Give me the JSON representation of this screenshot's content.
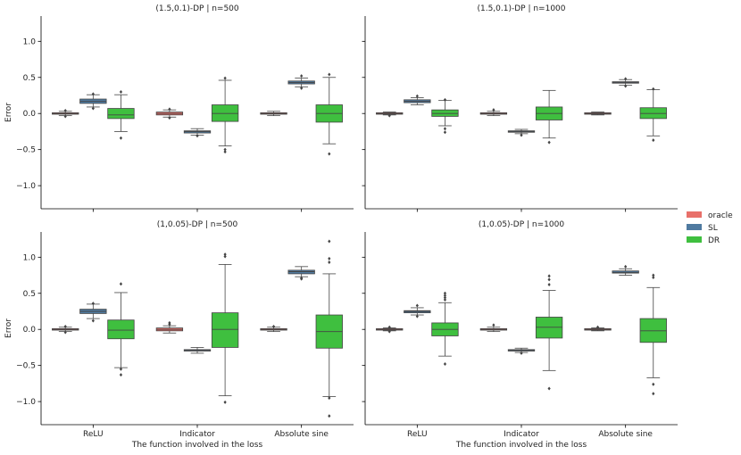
{
  "chart_data": {
    "type": "box",
    "categories": [
      "ReLU",
      "Indicator",
      "Absolute sine"
    ],
    "ylabel": "Error",
    "xlabel": "The function involved in the loss",
    "ylim": [
      -1.32,
      1.35
    ],
    "yticks": [
      -1.0,
      -0.5,
      0.0,
      0.5,
      1.0
    ],
    "ytick_labels": [
      "−1.0",
      "−0.5",
      "0.0",
      "0.5",
      "1.0"
    ],
    "colors": {
      "oracle": "#e8706a",
      "SL": "#4f7aa0",
      "DR": "#3fbf3f"
    },
    "legend": [
      {
        "key": "oracle",
        "label": "oracle"
      },
      {
        "key": "SL",
        "label": "SL"
      },
      {
        "key": "DR",
        "label": "DR"
      }
    ],
    "panels": [
      {
        "title": "(1.5,0.1)-DP | n=500",
        "boxes": [
          [
            {
              "series": "oracle",
              "q1": -0.01,
              "med": 0.0,
              "q3": 0.01,
              "wlo": -0.03,
              "whi": 0.03,
              "out": [
                -0.04,
                0.04
              ]
            },
            {
              "series": "SL",
              "q1": 0.14,
              "med": 0.17,
              "q3": 0.2,
              "wlo": 0.09,
              "whi": 0.26,
              "out": [
                0.07,
                0.27
              ]
            },
            {
              "series": "DR",
              "q1": -0.07,
              "med": -0.02,
              "q3": 0.07,
              "wlo": -0.25,
              "whi": 0.26,
              "out": [
                -0.34,
                0.3
              ]
            }
          ],
          [
            {
              "series": "oracle",
              "q1": -0.02,
              "med": 0.0,
              "q3": 0.02,
              "wlo": -0.05,
              "whi": 0.05,
              "out": [
                -0.06,
                0.06
              ]
            },
            {
              "series": "SL",
              "q1": -0.27,
              "med": -0.25,
              "q3": -0.24,
              "wlo": -0.3,
              "whi": -0.21,
              "out": [
                -0.31
              ]
            },
            {
              "series": "DR",
              "q1": -0.11,
              "med": 0.0,
              "q3": 0.12,
              "wlo": -0.45,
              "whi": 0.46,
              "out": [
                -0.5,
                -0.53,
                0.49
              ]
            }
          ],
          [
            {
              "series": "oracle",
              "q1": -0.01,
              "med": 0.0,
              "q3": 0.01,
              "wlo": -0.03,
              "whi": 0.03,
              "out": []
            },
            {
              "series": "SL",
              "q1": 0.41,
              "med": 0.43,
              "q3": 0.45,
              "wlo": 0.37,
              "whi": 0.49,
              "out": [
                0.35,
                0.52
              ]
            },
            {
              "series": "DR",
              "q1": -0.12,
              "med": 0.0,
              "q3": 0.12,
              "wlo": -0.42,
              "whi": 0.5,
              "out": [
                -0.56,
                0.54
              ]
            }
          ]
        ]
      },
      {
        "title": "(1.5,0.1)-DP | n=1000",
        "boxes": [
          [
            {
              "series": "oracle",
              "q1": -0.01,
              "med": 0.0,
              "q3": 0.01,
              "wlo": -0.02,
              "whi": 0.02,
              "out": [
                -0.03
              ]
            },
            {
              "series": "SL",
              "q1": 0.15,
              "med": 0.17,
              "q3": 0.19,
              "wlo": 0.12,
              "whi": 0.22,
              "out": [
                0.24
              ]
            },
            {
              "series": "DR",
              "q1": -0.04,
              "med": 0.0,
              "q3": 0.05,
              "wlo": -0.17,
              "whi": 0.18,
              "out": [
                -0.21,
                -0.26,
                0.19
              ]
            }
          ],
          [
            {
              "series": "oracle",
              "q1": -0.01,
              "med": 0.0,
              "q3": 0.01,
              "wlo": -0.03,
              "whi": 0.03,
              "out": [
                0.05
              ]
            },
            {
              "series": "SL",
              "q1": -0.26,
              "med": -0.25,
              "q3": -0.24,
              "wlo": -0.28,
              "whi": -0.22,
              "out": [
                -0.3
              ]
            },
            {
              "series": "DR",
              "q1": -0.09,
              "med": 0.0,
              "q3": 0.09,
              "wlo": -0.34,
              "whi": 0.32,
              "out": [
                -0.4
              ]
            }
          ],
          [
            {
              "series": "oracle",
              "q1": -0.01,
              "med": 0.0,
              "q3": 0.01,
              "wlo": -0.02,
              "whi": 0.02,
              "out": []
            },
            {
              "series": "SL",
              "q1": 0.42,
              "med": 0.43,
              "q3": 0.44,
              "wlo": 0.39,
              "whi": 0.47,
              "out": [
                0.38,
                0.48
              ]
            },
            {
              "series": "DR",
              "q1": -0.07,
              "med": 0.0,
              "q3": 0.08,
              "wlo": -0.31,
              "whi": 0.33,
              "out": [
                -0.37,
                0.34
              ]
            }
          ]
        ]
      },
      {
        "title": "(1,0.05)-DP | n=500",
        "boxes": [
          [
            {
              "series": "oracle",
              "q1": -0.01,
              "med": 0.0,
              "q3": 0.01,
              "wlo": -0.03,
              "whi": 0.03,
              "out": [
                -0.04,
                0.04
              ]
            },
            {
              "series": "SL",
              "q1": 0.22,
              "med": 0.25,
              "q3": 0.28,
              "wlo": 0.15,
              "whi": 0.35,
              "out": [
                0.12,
                0.36
              ]
            },
            {
              "series": "DR",
              "q1": -0.13,
              "med": -0.01,
              "q3": 0.13,
              "wlo": -0.53,
              "whi": 0.51,
              "out": [
                -0.55,
                -0.63,
                0.63
              ]
            }
          ],
          [
            {
              "series": "oracle",
              "q1": -0.02,
              "med": 0.0,
              "q3": 0.02,
              "wlo": -0.05,
              "whi": 0.05,
              "out": [
                0.07,
                0.09
              ]
            },
            {
              "series": "SL",
              "q1": -0.3,
              "med": -0.29,
              "q3": -0.28,
              "wlo": -0.33,
              "whi": -0.25,
              "out": []
            },
            {
              "series": "DR",
              "q1": -0.25,
              "med": 0.0,
              "q3": 0.23,
              "wlo": -0.92,
              "whi": 0.9,
              "out": [
                -1.01,
                1.01,
                1.04
              ]
            }
          ],
          [
            {
              "series": "oracle",
              "q1": -0.01,
              "med": 0.0,
              "q3": 0.01,
              "wlo": -0.03,
              "whi": 0.03,
              "out": [
                0.04
              ]
            },
            {
              "series": "SL",
              "q1": 0.77,
              "med": 0.8,
              "q3": 0.82,
              "wlo": 0.73,
              "whi": 0.87,
              "out": [
                0.7,
                0.71
              ]
            },
            {
              "series": "DR",
              "q1": -0.26,
              "med": -0.03,
              "q3": 0.2,
              "wlo": -0.93,
              "whi": 0.77,
              "out": [
                -0.95,
                -1.2,
                0.93,
                0.98,
                1.22
              ]
            }
          ]
        ]
      },
      {
        "title": "(1,0.05)-DP | n=1000",
        "boxes": [
          [
            {
              "series": "oracle",
              "q1": -0.01,
              "med": 0.0,
              "q3": 0.01,
              "wlo": -0.02,
              "whi": 0.02,
              "out": [
                -0.03,
                0.03
              ]
            },
            {
              "series": "SL",
              "q1": 0.23,
              "med": 0.25,
              "q3": 0.26,
              "wlo": 0.2,
              "whi": 0.3,
              "out": [
                0.18,
                0.33
              ]
            },
            {
              "series": "DR",
              "q1": -0.09,
              "med": 0.0,
              "q3": 0.09,
              "wlo": -0.37,
              "whi": 0.37,
              "out": [
                -0.48,
                0.41,
                0.44,
                0.47,
                0.5
              ]
            }
          ],
          [
            {
              "series": "oracle",
              "q1": -0.01,
              "med": 0.0,
              "q3": 0.01,
              "wlo": -0.03,
              "whi": 0.03,
              "out": [
                0.06
              ]
            },
            {
              "series": "SL",
              "q1": -0.3,
              "med": -0.29,
              "q3": -0.28,
              "wlo": -0.32,
              "whi": -0.26,
              "out": [
                -0.33
              ]
            },
            {
              "series": "DR",
              "q1": -0.12,
              "med": 0.03,
              "q3": 0.17,
              "wlo": -0.57,
              "whi": 0.54,
              "out": [
                -0.82,
                0.62,
                0.69,
                0.74
              ]
            }
          ],
          [
            {
              "series": "oracle",
              "q1": -0.01,
              "med": 0.0,
              "q3": 0.01,
              "wlo": -0.02,
              "whi": 0.02,
              "out": [
                0.03
              ]
            },
            {
              "series": "SL",
              "q1": 0.78,
              "med": 0.79,
              "q3": 0.81,
              "wlo": 0.75,
              "whi": 0.84,
              "out": [
                0.87
              ]
            },
            {
              "series": "DR",
              "q1": -0.18,
              "med": -0.02,
              "q3": 0.15,
              "wlo": -0.67,
              "whi": 0.58,
              "out": [
                -0.76,
                -0.89,
                0.72,
                0.75
              ]
            }
          ]
        ]
      }
    ]
  }
}
